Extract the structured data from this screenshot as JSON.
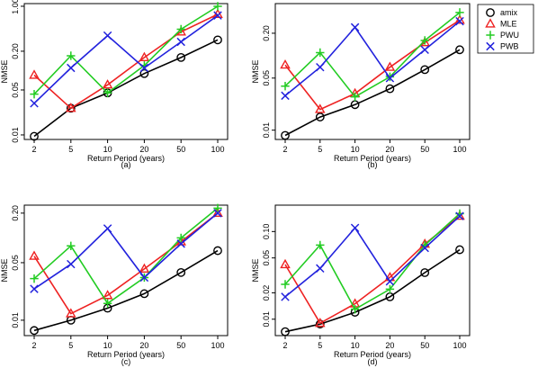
{
  "chart_data": [
    {
      "type": "line",
      "panel": "(a)",
      "xlabel": "Return Period (years)",
      "ylabel": "NMSE",
      "log_y": true,
      "x": [
        2,
        5,
        10,
        20,
        50,
        100
      ],
      "x_tick_labels": [
        "2",
        "5",
        "10",
        "20",
        "50",
        "100"
      ],
      "y_ticks": [
        0.01,
        0.05,
        0.2,
        1.0
      ],
      "y_tick_labels": [
        "0.01",
        "0.05",
        "0.20",
        "1.00"
      ],
      "ylim": [
        0.0085,
        1.1
      ],
      "series": [
        {
          "name": "amix",
          "values": [
            0.0095,
            0.026,
            0.045,
            0.09,
            0.16,
            0.3
          ]
        },
        {
          "name": "MLE",
          "values": [
            0.085,
            0.026,
            0.06,
            0.16,
            0.4,
            0.75
          ]
        },
        {
          "name": "PWU",
          "values": [
            0.043,
            0.17,
            0.045,
            0.12,
            0.44,
            1.0
          ]
        },
        {
          "name": "PWB",
          "values": [
            0.031,
            0.11,
            0.35,
            0.11,
            0.28,
            0.72
          ]
        }
      ]
    },
    {
      "type": "line",
      "panel": "(b)",
      "xlabel": "Return Period (years)",
      "ylabel": "NMSE",
      "log_y": true,
      "x": [
        2,
        5,
        10,
        20,
        50,
        100
      ],
      "x_tick_labels": [
        "2",
        "5",
        "10",
        "20",
        "50",
        "100"
      ],
      "y_ticks": [
        0.01,
        0.05,
        0.2
      ],
      "y_tick_labels": [
        "0.01",
        "0.05",
        "0.20"
      ],
      "ylim": [
        0.0075,
        0.5
      ],
      "series": [
        {
          "name": "amix",
          "values": [
            0.0085,
            0.015,
            0.022,
            0.036,
            0.065,
            0.12
          ]
        },
        {
          "name": "MLE",
          "values": [
            0.075,
            0.019,
            0.031,
            0.07,
            0.15,
            0.3
          ]
        },
        {
          "name": "PWU",
          "values": [
            0.039,
            0.11,
            0.028,
            0.052,
            0.16,
            0.38
          ]
        },
        {
          "name": "PWB",
          "values": [
            0.029,
            0.07,
            0.24,
            0.05,
            0.12,
            0.29
          ]
        }
      ]
    },
    {
      "type": "line",
      "panel": "(c)",
      "xlabel": "Return Period (years)",
      "ylabel": "NMSE",
      "log_y": true,
      "x": [
        2,
        5,
        10,
        20,
        50,
        100
      ],
      "x_tick_labels": [
        "2",
        "5",
        "10",
        "20",
        "50",
        "100"
      ],
      "y_ticks": [
        0.01,
        0.05,
        0.2
      ],
      "y_tick_labels": [
        "0.01",
        "0.05",
        "0.20"
      ],
      "ylim": [
        0.0065,
        0.25
      ],
      "series": [
        {
          "name": "amix",
          "values": [
            0.0075,
            0.01,
            0.014,
            0.021,
            0.038,
            0.07
          ]
        },
        {
          "name": "MLE",
          "values": [
            0.06,
            0.012,
            0.02,
            0.042,
            0.09,
            0.2
          ]
        },
        {
          "name": "PWU",
          "values": [
            0.032,
            0.08,
            0.016,
            0.033,
            0.1,
            0.23
          ]
        },
        {
          "name": "PWB",
          "values": [
            0.024,
            0.048,
            0.13,
            0.033,
            0.085,
            0.2
          ]
        }
      ]
    },
    {
      "type": "line",
      "panel": "(d)",
      "xlabel": "Return Period (years)",
      "ylabel": "NMSE",
      "log_y": true,
      "x": [
        2,
        5,
        10,
        20,
        50,
        100
      ],
      "x_tick_labels": [
        "2",
        "5",
        "10",
        "20",
        "50",
        "100"
      ],
      "y_ticks": [
        0.01,
        0.02,
        0.05,
        0.1
      ],
      "y_tick_labels": [
        "0.01",
        "0.02",
        "0.05",
        "0.10"
      ],
      "ylim": [
        0.0065,
        0.2
      ],
      "series": [
        {
          "name": "amix",
          "values": [
            0.0072,
            0.0088,
            0.012,
            0.018,
            0.034,
            0.062
          ]
        },
        {
          "name": "MLE",
          "values": [
            0.042,
            0.009,
            0.015,
            0.03,
            0.072,
            0.15
          ]
        },
        {
          "name": "PWU",
          "values": [
            0.025,
            0.07,
            0.013,
            0.022,
            0.07,
            0.16
          ]
        },
        {
          "name": "PWB",
          "values": [
            0.018,
            0.038,
            0.11,
            0.027,
            0.065,
            0.15
          ]
        }
      ]
    }
  ],
  "legend": {
    "placement": "top-right",
    "entries": [
      {
        "name": "amix",
        "color": "#000000",
        "marker": "circle"
      },
      {
        "name": "MLE",
        "color": "#ee2222",
        "marker": "triangle"
      },
      {
        "name": "PWU",
        "color": "#22cc22",
        "marker": "plus"
      },
      {
        "name": "PWB",
        "color": "#2222dd",
        "marker": "cross"
      }
    ]
  }
}
